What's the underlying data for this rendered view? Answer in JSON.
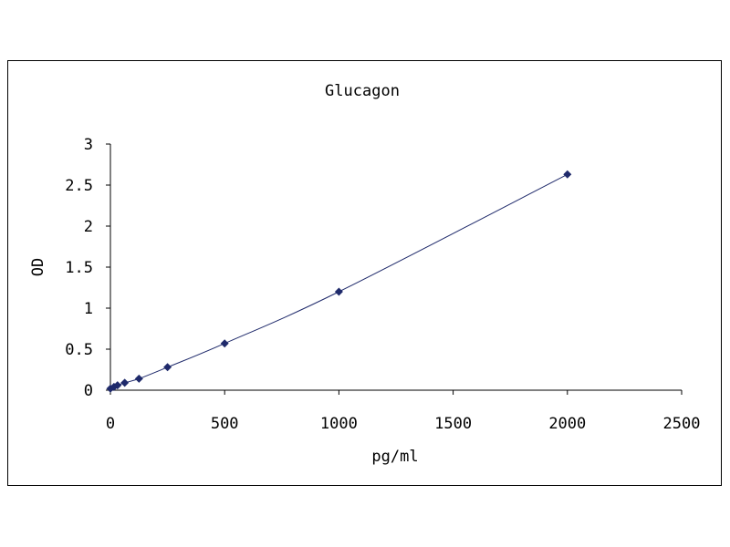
{
  "chart_data": {
    "type": "scatter",
    "title": "Glucagon",
    "xlabel": "pg/ml",
    "ylabel": "OD",
    "xlim": [
      0,
      2500
    ],
    "ylim": [
      0,
      3
    ],
    "x_ticks": [
      "0",
      "500",
      "1000",
      "1500",
      "2000",
      "2500"
    ],
    "y_ticks": [
      "0",
      "0.5",
      "1",
      "1.5",
      "2",
      "2.5",
      "3"
    ],
    "grid": false,
    "legend": "none",
    "series": [
      {
        "points": [
          {
            "x": 0,
            "y": 0.02
          },
          {
            "x": 15.6,
            "y": 0.04
          },
          {
            "x": 31.2,
            "y": 0.06
          },
          {
            "x": 62.5,
            "y": 0.09
          },
          {
            "x": 125,
            "y": 0.14
          },
          {
            "x": 250,
            "y": 0.28
          },
          {
            "x": 500,
            "y": 0.57
          },
          {
            "x": 1000,
            "y": 1.2
          },
          {
            "x": 2000,
            "y": 2.63
          }
        ],
        "line": "smooth",
        "color": "#1f2a6b",
        "marker": "diamond"
      }
    ]
  }
}
